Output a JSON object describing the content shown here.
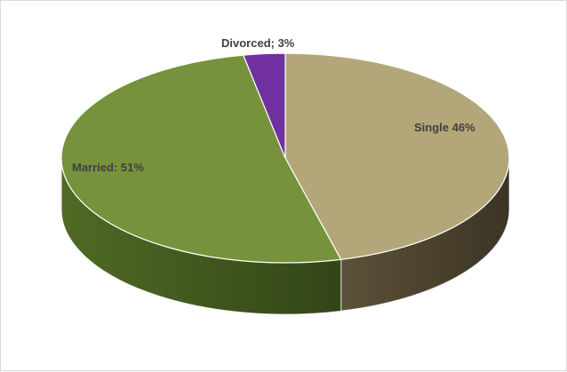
{
  "chart_data": {
    "type": "pie",
    "title": "",
    "categories": [
      "Single",
      "Married",
      "Divorced"
    ],
    "values": [
      46,
      51,
      3
    ],
    "unit": "%",
    "labels": [
      "Single 46%",
      "Married: 51%",
      "Divorced; 3%"
    ],
    "colors": [
      "#b3a77a",
      "#76923c",
      "#7030a0"
    ],
    "side_colors": [
      "#5c5138",
      "#4f6a24",
      "#4a1f6b"
    ],
    "legend": "none",
    "style": "3d"
  }
}
